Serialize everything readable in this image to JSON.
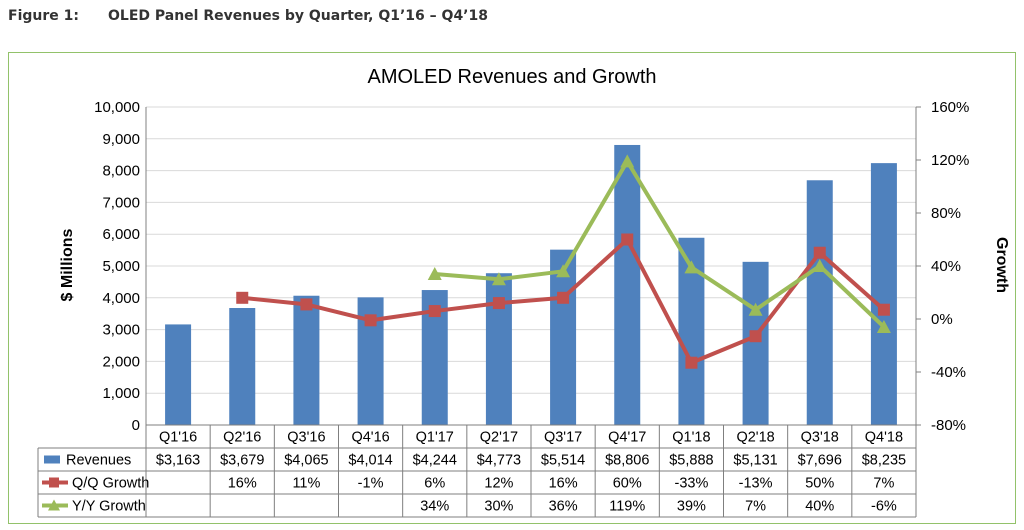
{
  "caption": {
    "label": "Figure 1:",
    "text": "OLED Panel Revenues by Quarter, Q1’16 – Q4’18"
  },
  "colors": {
    "bar": "#4f81bd",
    "qq": "#c0504d",
    "yy": "#9bbb59",
    "frame": "#92c26a",
    "grid": "#d9d9d9"
  },
  "chart_data": {
    "type": "bar",
    "title": "AMOLED Revenues and Growth",
    "ylabel": "$ Millions",
    "y2label": "Growth",
    "ylim": [
      0,
      10000
    ],
    "y2lim": [
      -80,
      160
    ],
    "yticks": [
      "0",
      "1,000",
      "2,000",
      "3,000",
      "4,000",
      "5,000",
      "6,000",
      "7,000",
      "8,000",
      "9,000",
      "10,000"
    ],
    "y2ticks": [
      "-80%",
      "-40%",
      "0%",
      "40%",
      "80%",
      "120%",
      "160%"
    ],
    "grid": true,
    "categories": [
      "Q1'16",
      "Q2'16",
      "Q3'16",
      "Q4'16",
      "Q1'17",
      "Q2'17",
      "Q3'17",
      "Q4'17",
      "Q1'18",
      "Q2'18",
      "Q3'18",
      "Q4'18"
    ],
    "series": [
      {
        "name": "Revenues",
        "type": "bar",
        "axis": "left",
        "values": [
          3163,
          3679,
          4065,
          4014,
          4244,
          4773,
          5514,
          8806,
          5888,
          5131,
          7696,
          8235
        ],
        "labels": [
          "$3,163",
          "$3,679",
          "$4,065",
          "$4,014",
          "$4,244",
          "$4,773",
          "$5,514",
          "$8,806",
          "$5,888",
          "$5,131",
          "$7,696",
          "$8,235"
        ]
      },
      {
        "name": "Q/Q Growth",
        "type": "line",
        "axis": "right",
        "values": [
          null,
          16,
          11,
          -1,
          6,
          12,
          16,
          60,
          -33,
          -13,
          50,
          7
        ],
        "labels": [
          "",
          "16%",
          "11%",
          "-1%",
          "6%",
          "12%",
          "16%",
          "60%",
          "-33%",
          "-13%",
          "50%",
          "7%"
        ]
      },
      {
        "name": "Y/Y Growth",
        "type": "line",
        "axis": "right",
        "values": [
          null,
          null,
          null,
          null,
          34,
          30,
          36,
          119,
          39,
          7,
          40,
          -6
        ],
        "labels": [
          "",
          "",
          "",
          "",
          "34%",
          "30%",
          "36%",
          "119%",
          "39%",
          "7%",
          "40%",
          "-6%"
        ]
      }
    ]
  }
}
